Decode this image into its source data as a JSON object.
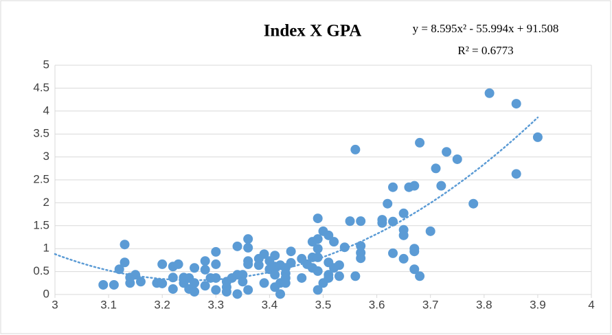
{
  "chart_data": {
    "type": "scatter",
    "title": "Index X GPA",
    "color": "#5b9bd5",
    "x": [
      3.09,
      3.11,
      3.12,
      3.13,
      3.13,
      3.14,
      3.14,
      3.15,
      3.16,
      3.19,
      3.2,
      3.2,
      3.22,
      3.22,
      3.22,
      3.23,
      3.24,
      3.24,
      3.24,
      3.25,
      3.25,
      3.26,
      3.26,
      3.26,
      3.28,
      3.28,
      3.28,
      3.29,
      3.3,
      3.3,
      3.3,
      3.3,
      3.32,
      3.32,
      3.32,
      3.33,
      3.34,
      3.34,
      3.34,
      3.35,
      3.35,
      3.36,
      3.36,
      3.36,
      3.36,
      3.36,
      3.38,
      3.38,
      3.39,
      3.39,
      3.4,
      3.4,
      3.41,
      3.41,
      3.41,
      3.41,
      3.42,
      3.42,
      3.42,
      3.43,
      3.43,
      3.43,
      3.43,
      3.44,
      3.44,
      3.46,
      3.46,
      3.47,
      3.48,
      3.48,
      3.48,
      3.49,
      3.49,
      3.49,
      3.49,
      3.49,
      3.49,
      3.5,
      3.5,
      3.51,
      3.51,
      3.51,
      3.51,
      3.52,
      3.52,
      3.53,
      3.53,
      3.54,
      3.55,
      3.56,
      3.56,
      3.57,
      3.57,
      3.57,
      3.57,
      3.61,
      3.61,
      3.62,
      3.63,
      3.63,
      3.63,
      3.65,
      3.65,
      3.65,
      3.65,
      3.66,
      3.67,
      3.67,
      3.67,
      3.67,
      3.68,
      3.68,
      3.7,
      3.71,
      3.72,
      3.73,
      3.75,
      3.78,
      3.81,
      3.86,
      3.86,
      3.9
    ],
    "values": [
      0.21,
      0.21,
      0.55,
      1.09,
      0.7,
      0.37,
      0.25,
      0.43,
      0.28,
      0.25,
      0.66,
      0.24,
      0.61,
      0.37,
      0.12,
      0.66,
      0.37,
      0.25,
      0.33,
      0.36,
      0.12,
      0.25,
      0.06,
      0.58,
      0.73,
      0.54,
      0.19,
      0.36,
      0.93,
      0.66,
      0.1,
      0.36,
      0.16,
      0.06,
      0.28,
      0.36,
      0.43,
      1.05,
      0.01,
      0.43,
      0.28,
      0.73,
      1.21,
      1.02,
      0.66,
      0.1,
      0.78,
      0.64,
      0.25,
      0.88,
      0.55,
      0.73,
      0.43,
      0.85,
      0.61,
      0.16,
      0.25,
      0.64,
      0.01,
      0.46,
      0.36,
      0.58,
      0.25,
      0.94,
      0.69,
      0.78,
      0.36,
      0.66,
      0.58,
      1.15,
      0.81,
      0.51,
      1.66,
      1.21,
      1.0,
      0.81,
      0.1,
      0.25,
      1.38,
      0.43,
      0.7,
      1.29,
      0.36,
      0.58,
      1.15,
      0.4,
      0.64,
      1.03,
      1.6,
      3.16,
      0.4,
      1.6,
      1.06,
      0.91,
      0.79,
      1.63,
      1.56,
      1.98,
      2.34,
      1.59,
      0.9,
      1.77,
      1.41,
      1.29,
      0.78,
      2.34,
      2.37,
      1.0,
      0.94,
      0.55,
      3.31,
      0.4,
      1.38,
      2.75,
      2.37,
      3.11,
      2.95,
      1.98,
      4.39,
      4.16,
      2.63,
      3.43
    ],
    "xlim": [
      3,
      4
    ],
    "xticks": [
      3,
      3.1,
      3.2,
      3.3,
      3.4,
      3.5,
      3.6,
      3.7,
      3.8,
      3.9,
      4
    ],
    "ylim": [
      0,
      5
    ],
    "yticks": [
      0,
      0.5,
      1,
      1.5,
      2,
      2.5,
      3,
      3.5,
      4,
      4.5,
      5
    ],
    "grid": true,
    "trendline": {
      "equation": "y = 8.595x² - 55.994x + 91.508",
      "r_squared": "R² = 0.6773",
      "coefficients": [
        8.595,
        -55.994,
        91.508
      ]
    }
  }
}
